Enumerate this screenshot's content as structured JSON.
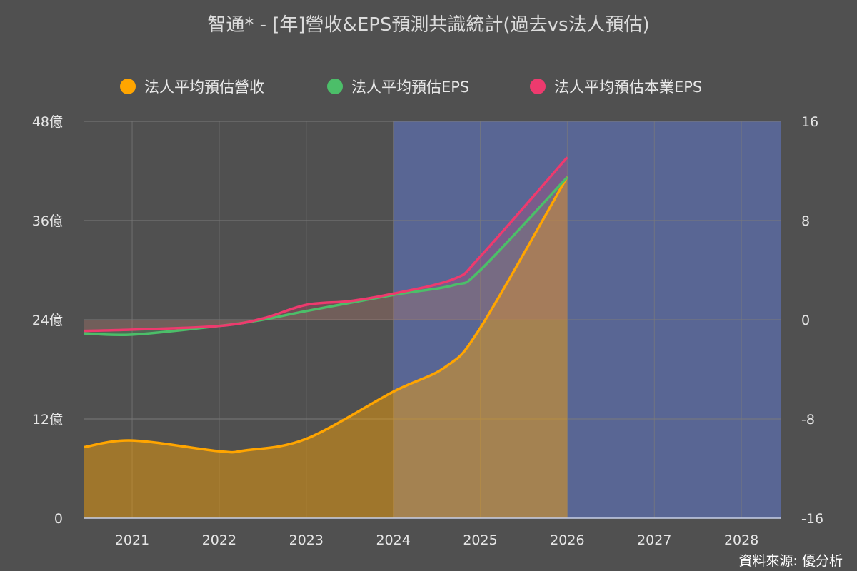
{
  "title": "智通* - [年]營收&EPS預測共識統計(過去vs法人預估)",
  "source": "資料來源: 優分析",
  "colors": {
    "background": "#505050",
    "forecast_band": "#5b6aa0",
    "revenue": "#ffa500",
    "eps": "#4cbe69",
    "core_eps": "#ee3a6e",
    "grid": "#7a7a7a"
  },
  "chart_data": {
    "type": "line",
    "title": "智通* - [年]營收&EPS預測共識統計(過去vs法人預估)",
    "legend_position": "top",
    "grid": true,
    "x_ticks": [
      "2021",
      "2022",
      "2023",
      "2024",
      "2025",
      "2026",
      "2027",
      "2028"
    ],
    "xlim": [
      2020.45,
      2028.45
    ],
    "forecast_region": [
      2024,
      2028.45
    ],
    "y_left": {
      "ticks": [
        "0",
        "12億",
        "24億",
        "36億",
        "48億"
      ],
      "range": [
        0,
        48
      ],
      "unit": "億"
    },
    "y_right": {
      "ticks": [
        "-16",
        "-8",
        "0",
        "8",
        "16"
      ],
      "range": [
        -16,
        16
      ]
    },
    "series": [
      {
        "name": "法人平均預估營收",
        "axis": "left",
        "x": [
          2020.45,
          2021,
          2022,
          2022.3,
          2023,
          2024,
          2024.6,
          2025,
          2026
        ],
        "values": [
          8.6,
          9.4,
          8.1,
          8.2,
          9.6,
          15.3,
          18.3,
          23,
          41.3
        ]
      },
      {
        "name": "法人平均預估EPS",
        "axis": "right",
        "x": [
          2020.45,
          2021,
          2022,
          2022.5,
          2023,
          2024,
          2024.7,
          2025,
          2026
        ],
        "values": [
          -1.1,
          -1.2,
          -0.5,
          0.0,
          0.7,
          2.0,
          2.8,
          4.0,
          11.5
        ]
      },
      {
        "name": "法人平均預估本業EPS",
        "axis": "right",
        "x": [
          2020.45,
          2021,
          2022,
          2022.5,
          2023,
          2023.5,
          2024,
          2024.7,
          2025,
          2026
        ],
        "values": [
          -0.9,
          -0.8,
          -0.5,
          0.1,
          1.2,
          1.5,
          2.1,
          3.3,
          5.1,
          13.1
        ]
      }
    ]
  }
}
